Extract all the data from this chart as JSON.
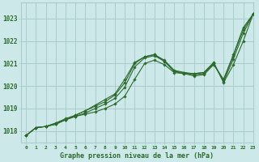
{
  "bg_color": "#cce8e8",
  "grid_color": "#aacccc",
  "line_color": "#2d6a2d",
  "marker_color": "#2d6a2d",
  "title": "Graphe pression niveau de la mer (hPa)",
  "title_color": "#2d6a2d",
  "xlim": [
    -0.5,
    23
  ],
  "ylim": [
    1017.5,
    1023.7
  ],
  "yticks": [
    1018,
    1019,
    1020,
    1021,
    1022,
    1023
  ],
  "xticks": [
    0,
    1,
    2,
    3,
    4,
    5,
    6,
    7,
    8,
    9,
    10,
    11,
    12,
    13,
    14,
    15,
    16,
    17,
    18,
    19,
    20,
    21,
    22,
    23
  ],
  "series": [
    [
      1017.8,
      1018.15,
      1018.2,
      1018.3,
      1018.5,
      1018.65,
      1018.75,
      1018.85,
      1019.0,
      1019.2,
      1019.55,
      1020.3,
      1021.0,
      1021.15,
      1020.95,
      1020.6,
      1020.55,
      1020.55,
      1020.6,
      1021.05,
      1020.15,
      1020.95,
      1022.0,
      1023.2
    ],
    [
      1017.8,
      1018.15,
      1018.2,
      1018.3,
      1018.5,
      1018.65,
      1018.8,
      1019.0,
      1019.2,
      1019.45,
      1019.95,
      1020.85,
      1021.25,
      1021.35,
      1021.1,
      1020.65,
      1020.6,
      1020.55,
      1020.6,
      1021.0,
      1020.2,
      1021.2,
      1022.35,
      1023.2
    ],
    [
      1017.8,
      1018.15,
      1018.2,
      1018.35,
      1018.5,
      1018.7,
      1018.9,
      1019.1,
      1019.3,
      1019.6,
      1020.15,
      1021.0,
      1021.3,
      1021.4,
      1021.15,
      1020.7,
      1020.6,
      1020.5,
      1020.55,
      1021.0,
      1020.25,
      1021.35,
      1022.5,
      1023.2
    ],
    [
      1017.8,
      1018.15,
      1018.2,
      1018.35,
      1018.55,
      1018.7,
      1018.9,
      1019.15,
      1019.4,
      1019.65,
      1020.3,
      1021.05,
      1021.3,
      1021.4,
      1021.1,
      1020.65,
      1020.55,
      1020.45,
      1020.5,
      1020.95,
      1020.3,
      1021.4,
      1022.6,
      1023.2
    ]
  ]
}
